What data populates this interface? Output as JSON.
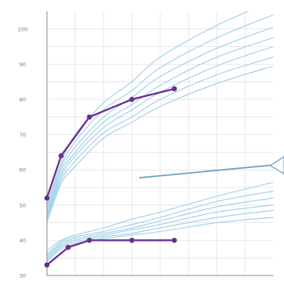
{
  "chart_data": {
    "type": "line",
    "title": "",
    "xlabel": "",
    "ylabel": "",
    "grid": true,
    "ylim": [
      30,
      105
    ],
    "xlim": [
      0,
      16
    ],
    "y_ticks": [
      "100",
      "90",
      "80",
      "70",
      "60",
      "50",
      "40",
      "30"
    ],
    "reference_curves": [
      {
        "x": [
          0,
          1,
          2,
          4,
          6,
          8,
          12,
          16
        ],
        "values": [
          50,
          62,
          70,
          79,
          85,
          92,
          101,
          108
        ]
      },
      {
        "x": [
          0,
          1,
          2,
          4,
          6,
          8,
          12,
          16
        ],
        "values": [
          49,
          61,
          68,
          77,
          82.5,
          89,
          97.5,
          104
        ]
      },
      {
        "x": [
          0,
          1,
          2,
          4,
          6,
          8,
          12,
          16
        ],
        "values": [
          48,
          60,
          66.5,
          75,
          80.5,
          86.5,
          94.5,
          100.5
        ]
      },
      {
        "x": [
          0,
          1,
          2,
          4,
          6,
          8,
          12,
          16
        ],
        "values": [
          47,
          59,
          65,
          73.5,
          78.5,
          84,
          92,
          97.5
        ]
      },
      {
        "x": [
          0,
          1,
          2,
          4,
          6,
          8,
          12,
          16
        ],
        "values": [
          46.5,
          58,
          64,
          72,
          77,
          82,
          89.5,
          95
        ]
      },
      {
        "x": [
          0,
          1,
          2,
          4,
          6,
          8,
          12,
          16
        ],
        "values": [
          46,
          57,
          62.5,
          70.5,
          75,
          80,
          87,
          92
        ]
      },
      {
        "x": [
          0,
          1,
          2,
          4,
          6,
          8,
          12,
          16
        ],
        "values": [
          45,
          56,
          61,
          69,
          73.5,
          78,
          84.5,
          89.5
        ]
      },
      {
        "x": [
          0,
          1,
          2,
          4,
          6,
          8,
          12,
          16
        ],
        "values": [
          37,
          40,
          41.5,
          43.5,
          46,
          48,
          52.5,
          56.5
        ]
      },
      {
        "x": [
          0,
          1,
          2,
          4,
          6,
          8,
          12,
          16
        ],
        "values": [
          36,
          39.5,
          41,
          42.5,
          44.5,
          46.5,
          51,
          54
        ]
      },
      {
        "x": [
          0,
          1,
          2,
          4,
          6,
          8,
          12,
          16
        ],
        "values": [
          35.5,
          39,
          40.5,
          42,
          43.5,
          45.5,
          49.5,
          52
        ]
      },
      {
        "x": [
          0,
          1,
          2,
          4,
          6,
          8,
          12,
          16
        ],
        "values": [
          35,
          38.5,
          40,
          41.5,
          43,
          44.5,
          48,
          50
        ]
      },
      {
        "x": [
          0,
          1,
          2,
          4,
          6,
          8,
          12,
          16
        ],
        "values": [
          34.5,
          38,
          39.5,
          41,
          42,
          43.5,
          46.5,
          48.5
        ]
      },
      {
        "x": [
          0,
          1,
          2,
          4,
          6,
          8,
          12,
          16
        ],
        "values": [
          34,
          37.5,
          39,
          40.5,
          41.5,
          42.5,
          45,
          46.5
        ]
      }
    ],
    "series": [
      {
        "x": [
          0,
          1,
          3,
          6,
          9
        ],
        "values": [
          52,
          64,
          75,
          80,
          83
        ]
      },
      {
        "x": [
          0,
          1.5,
          3,
          6,
          9
        ],
        "values": [
          33,
          38,
          40,
          40,
          40
        ]
      }
    ],
    "colors": {
      "reference": "#9fd0e6",
      "series": "#6a2e8e",
      "grid": "#e2e2ea",
      "axis": "#8a8a8a",
      "arrow": "#6fa3c4"
    }
  }
}
